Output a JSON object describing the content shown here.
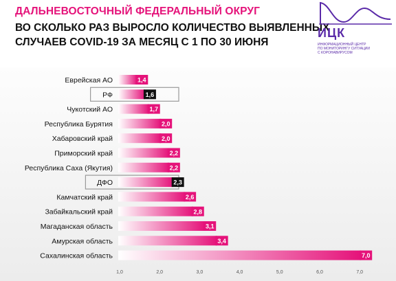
{
  "header": {
    "region_title": "ДАЛЬНЕВОСТОЧНЫЙ ФЕДЕРАЛЬНЫЙ ОКРУГ",
    "subtitle_line1": "ВО СКОЛЬКО РАЗ ВЫРОСЛО КОЛИЧЕСТВО ВЫЯВЛЕННЫХ",
    "subtitle_line2": "СЛУЧАЕВ COVID-19 ЗА МЕСЯЦ С 1 ПО 30 ИЮНЯ"
  },
  "logo": {
    "abbr": "ИЦК",
    "desc_line1": "ИНФОРМАЦИОННЫЙ ЦЕНТР",
    "desc_line2": "ПО МОНИТОРИНГУ СИТУАЦИИ",
    "desc_line3": "С КОРОНАВИРУСОМ",
    "color": "#5a2aa8"
  },
  "chart_data": {
    "type": "bar",
    "orientation": "horizontal",
    "title": "",
    "xlabel": "",
    "ylabel": "",
    "xlim": [
      1.0,
      7.0
    ],
    "xticks": [
      "1,0",
      "2,0",
      "3,0",
      "4,0",
      "5,0",
      "6,0",
      "7,0"
    ],
    "xtick_values": [
      1,
      2,
      3,
      4,
      5,
      6,
      7
    ],
    "grid": false,
    "legend": "none",
    "bar_color_start": "#ffffff",
    "bar_color_end": "#e5137a",
    "highlight_label_color": "#111111",
    "categories": [
      "Еврейская АО",
      "РФ",
      "Чукотский АО",
      "Республика Бурятия",
      "Хабаровский край",
      "Приморский край",
      "Республика Саха (Якутия)",
      "ДФО",
      "Камчатский край",
      "Забайкальский край",
      "Магаданская область",
      "Амурская область",
      "Сахалинская область"
    ],
    "values": [
      1.4,
      1.6,
      1.7,
      2.0,
      2.0,
      2.2,
      2.2,
      2.3,
      2.6,
      2.8,
      3.1,
      3.4,
      7.0
    ],
    "value_labels": [
      "1,4",
      "1,6",
      "1,7",
      "2,0",
      "2,0",
      "2,2",
      "2,2",
      "2,3",
      "2,6",
      "2,8",
      "3,1",
      "3,4",
      "7,0"
    ],
    "highlighted": [
      "РФ",
      "ДФО"
    ]
  }
}
